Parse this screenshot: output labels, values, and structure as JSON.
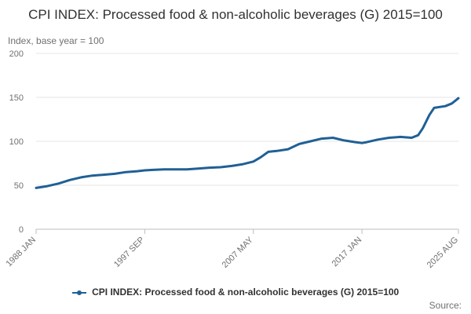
{
  "chart_data": {
    "type": "line",
    "title": "CPI INDEX: Processed food & non-alcoholic beverages (G) 2015=100",
    "ylabel": "Index, base year = 100",
    "xlabel": "",
    "ylim": [
      0,
      200
    ],
    "yticks": [
      0,
      50,
      100,
      150,
      200
    ],
    "xlim": [
      "1988-01",
      "2025-08"
    ],
    "xtick_labels": [
      {
        "label": "1988 JAN",
        "date": "1988-01"
      },
      {
        "label": "1997 SEP",
        "date": "1997-09"
      },
      {
        "label": "2007 MAY",
        "date": "2007-05"
      },
      {
        "label": "2017 JAN",
        "date": "2017-01"
      },
      {
        "label": "2025 AUG",
        "date": "2025-08"
      }
    ],
    "grid": true,
    "legend_position": "bottom",
    "series": [
      {
        "name": "CPI INDEX: Processed food & non-alcoholic beverages (G) 2015=100",
        "color": "#206095",
        "points": [
          [
            "1988-01",
            47
          ],
          [
            "1989-01",
            49
          ],
          [
            "1990-01",
            52
          ],
          [
            "1991-01",
            56
          ],
          [
            "1992-01",
            59
          ],
          [
            "1993-01",
            61
          ],
          [
            "1994-01",
            62
          ],
          [
            "1995-01",
            63
          ],
          [
            "1996-01",
            65
          ],
          [
            "1997-01",
            66
          ],
          [
            "1997-09",
            67
          ],
          [
            "1998-06",
            67.5
          ],
          [
            "1999-06",
            68
          ],
          [
            "2000-06",
            68
          ],
          [
            "2001-06",
            68
          ],
          [
            "2002-06",
            69
          ],
          [
            "2003-06",
            70
          ],
          [
            "2004-06",
            70.5
          ],
          [
            "2005-06",
            72
          ],
          [
            "2006-06",
            74
          ],
          [
            "2007-05",
            77
          ],
          [
            "2008-01",
            82
          ],
          [
            "2008-09",
            88
          ],
          [
            "2009-06",
            89
          ],
          [
            "2010-06",
            91
          ],
          [
            "2011-06",
            97
          ],
          [
            "2012-06",
            100
          ],
          [
            "2013-06",
            103
          ],
          [
            "2014-06",
            104
          ],
          [
            "2015-06",
            101
          ],
          [
            "2016-06",
            99
          ],
          [
            "2017-01",
            98
          ],
          [
            "2017-06",
            99
          ],
          [
            "2018-06",
            102
          ],
          [
            "2019-06",
            104
          ],
          [
            "2020-06",
            105
          ],
          [
            "2021-06",
            104
          ],
          [
            "2022-01",
            107
          ],
          [
            "2022-06",
            115
          ],
          [
            "2023-01",
            130
          ],
          [
            "2023-06",
            138
          ],
          [
            "2024-06",
            140
          ],
          [
            "2025-01",
            143
          ],
          [
            "2025-08",
            149
          ]
        ]
      }
    ],
    "source_label": "Source:"
  }
}
